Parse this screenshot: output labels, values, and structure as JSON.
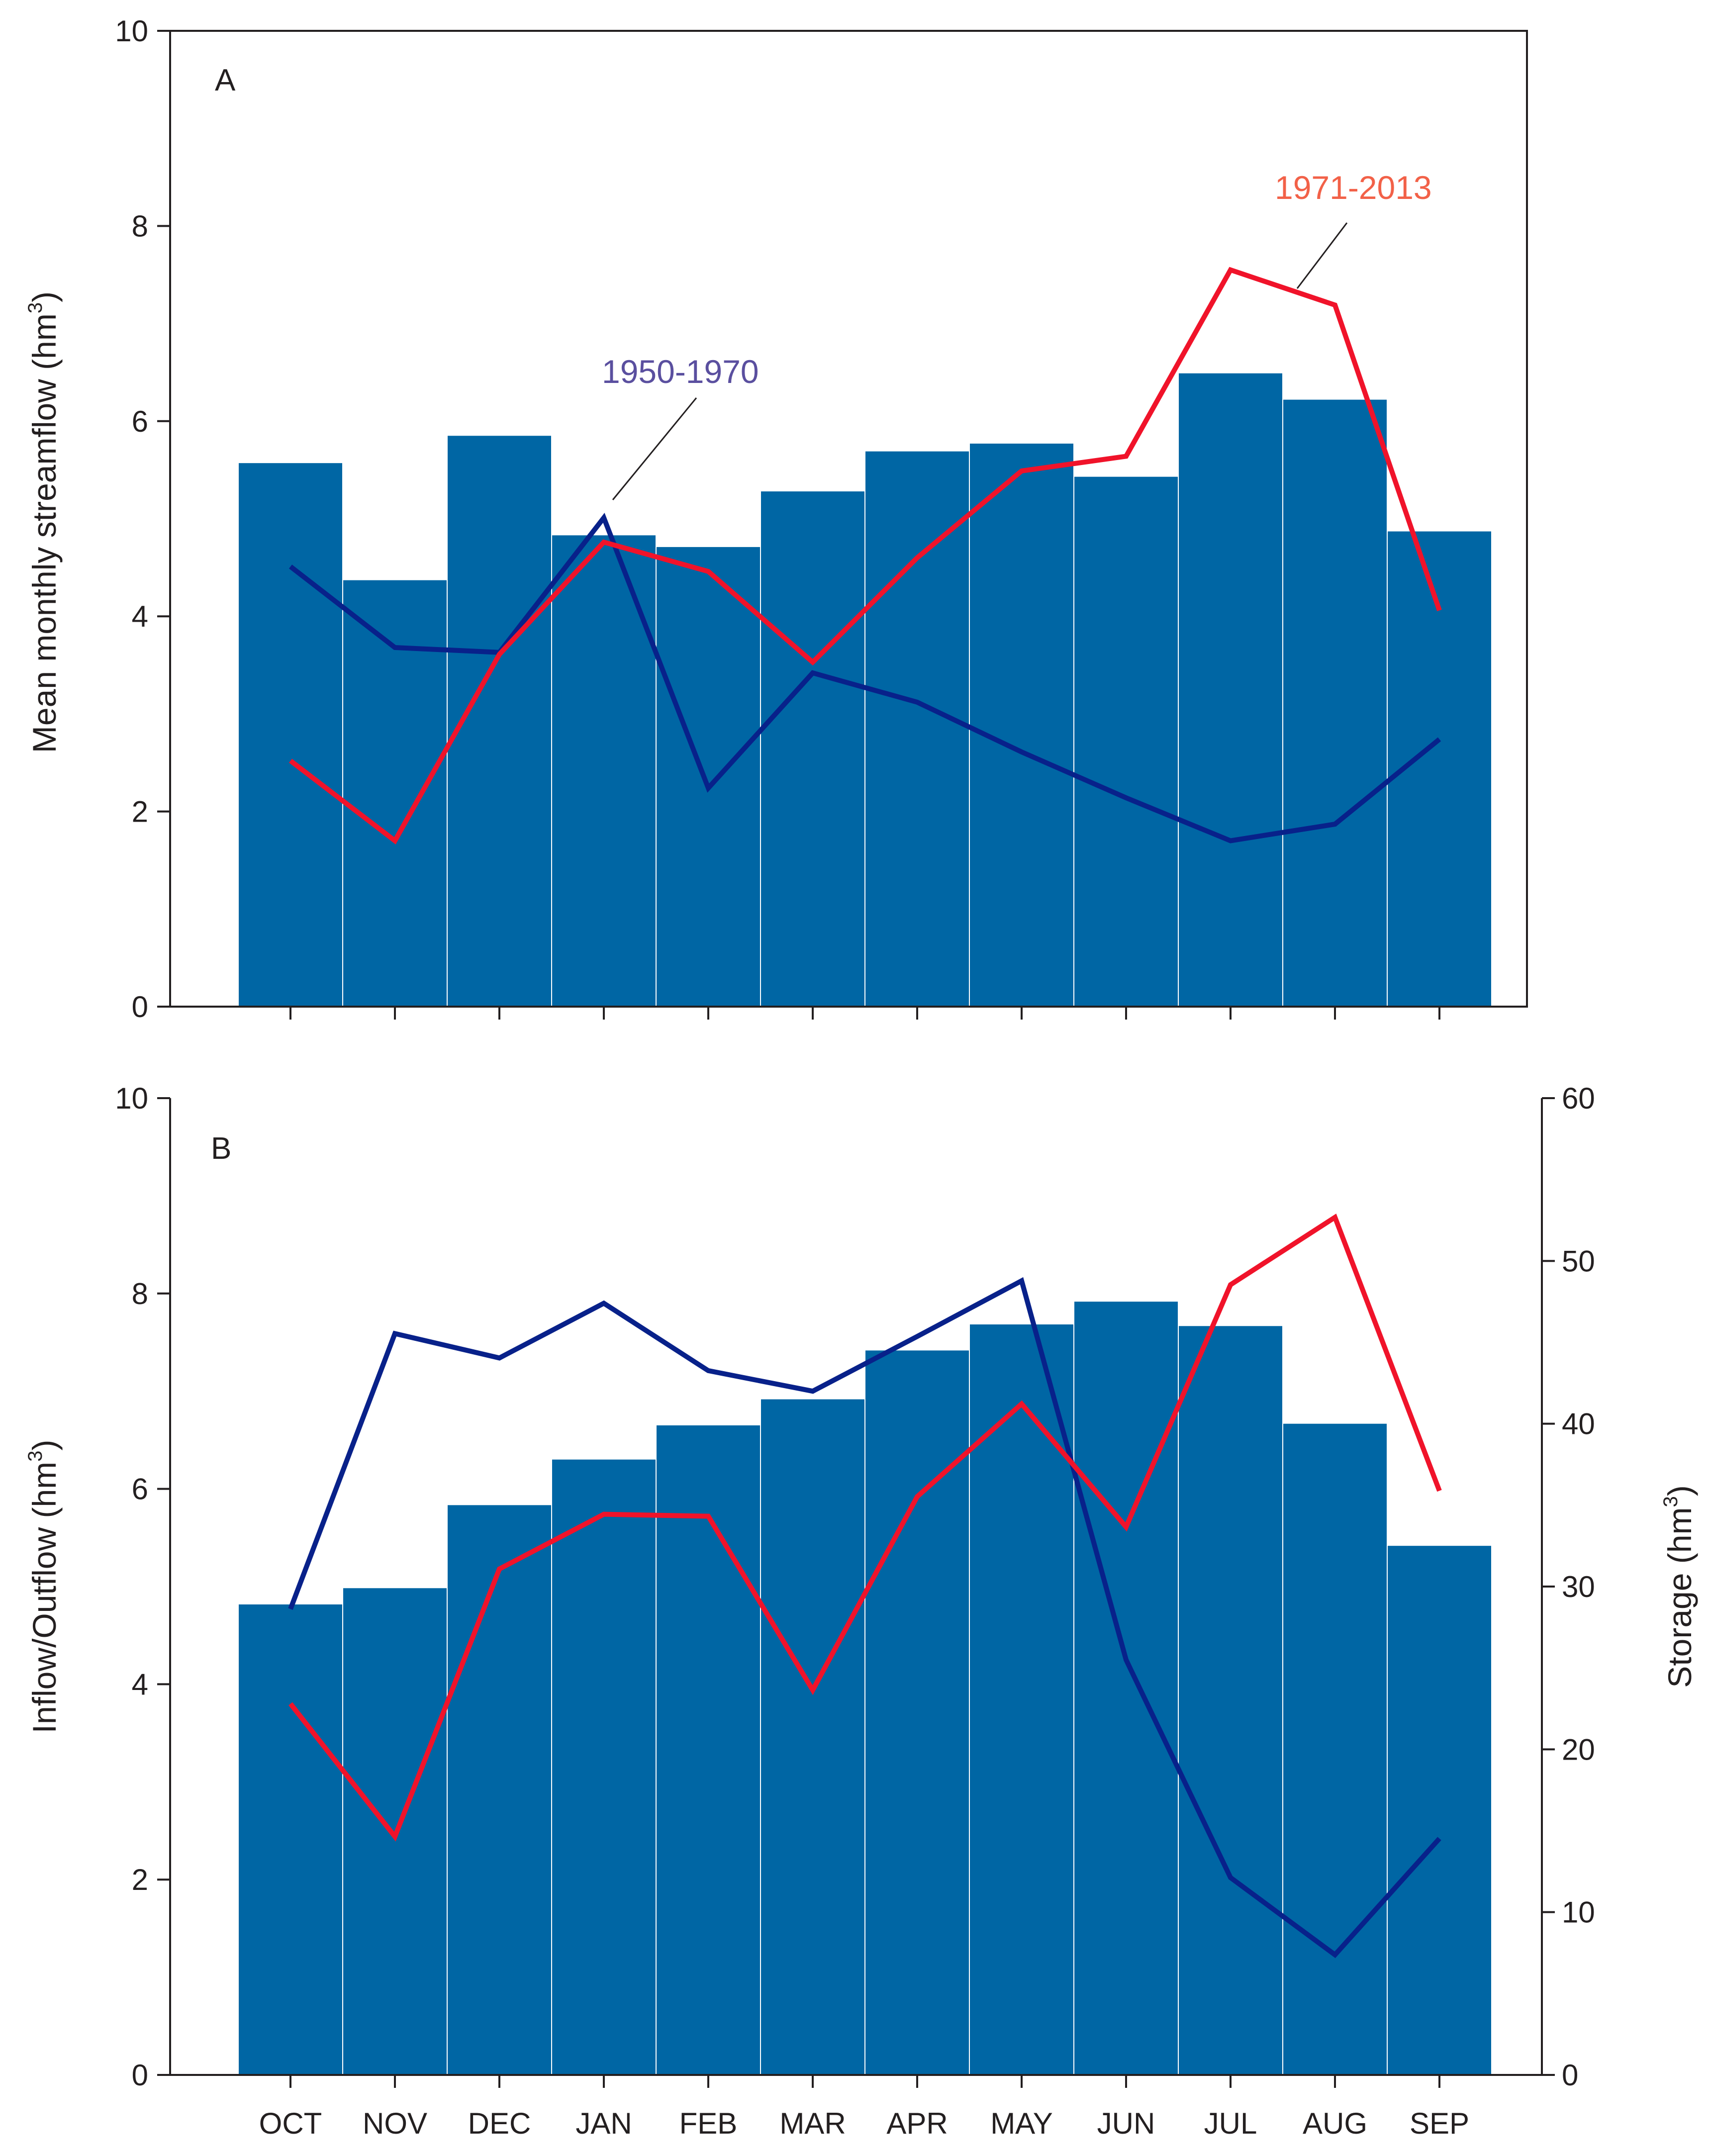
{
  "colors": {
    "bar": "#0066a4",
    "line_1950_1970": "#08218a",
    "line_1971_2013": "#f0132a",
    "label_1950_1970": "#5a4f9f",
    "label_1971_2013": "#f26148",
    "axis": "#231f20"
  },
  "chart_data": [
    {
      "type": "bar",
      "panel": "A",
      "categories": [
        "OCT",
        "NOV",
        "DEC",
        "JAN",
        "FEB",
        "MAR",
        "APR",
        "MAY",
        "JUN",
        "JUL",
        "AUG",
        "SEP"
      ],
      "values": [
        5.57,
        4.37,
        5.85,
        4.83,
        4.71,
        5.28,
        5.69,
        5.77,
        5.43,
        6.49,
        6.22,
        4.87
      ],
      "series": [
        {
          "name": "1950-1970",
          "type": "line",
          "values": [
            4.51,
            3.68,
            3.63,
            5.01,
            2.24,
            3.42,
            3.12,
            2.61,
            2.14,
            1.7,
            1.87,
            2.74
          ]
        },
        {
          "name": "1971-2013",
          "type": "line",
          "values": [
            2.52,
            1.7,
            3.61,
            4.76,
            4.46,
            3.53,
            4.6,
            5.49,
            5.64,
            7.55,
            7.19,
            4.06
          ]
        }
      ],
      "annotations": [
        {
          "text": "1950-1970",
          "points_to": "JAN"
        },
        {
          "text": "1971-2013",
          "points_to": "AUG"
        }
      ],
      "ylabel": "Mean monthly streamflow (hm3)",
      "ylim": [
        0,
        10
      ],
      "yticks": [
        "0",
        "2",
        "4",
        "6",
        "8",
        "10"
      ]
    },
    {
      "type": "bar",
      "panel": "B",
      "categories": [
        "OCT",
        "NOV",
        "DEC",
        "JAN",
        "FEB",
        "MAR",
        "APR",
        "MAY",
        "JUN",
        "JUL",
        "AUG",
        "SEP"
      ],
      "values": [
        28.9,
        29.9,
        35.0,
        37.8,
        39.9,
        41.5,
        44.5,
        46.1,
        47.5,
        46.0,
        40.0,
        32.5
      ],
      "series": [
        {
          "name": "blue line",
          "type": "line",
          "values": [
            4.77,
            7.59,
            7.34,
            7.9,
            7.21,
            7.0,
            7.56,
            8.13,
            4.25,
            2.02,
            1.23,
            2.42
          ]
        },
        {
          "name": "red line",
          "type": "line",
          "values": [
            3.8,
            2.44,
            5.18,
            5.74,
            5.72,
            3.94,
            5.92,
            6.87,
            5.61,
            8.09,
            8.78,
            5.98
          ]
        }
      ],
      "ylabel": "Inflow/Outflow (hm3)",
      "ylim": [
        0,
        10
      ],
      "yticks": [
        "0",
        "2",
        "4",
        "6",
        "8",
        "10"
      ],
      "y2label": "Storage (hm3)",
      "y2lim": [
        0,
        60
      ],
      "y2ticks": [
        "0",
        "10",
        "20",
        "30",
        "40",
        "50",
        "60"
      ]
    }
  ]
}
